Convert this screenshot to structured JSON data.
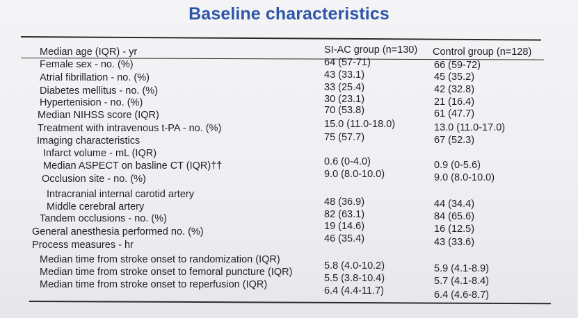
{
  "title": "Baseline characteristics",
  "columns": [
    "SI-AC group  (n=130)",
    "Control group (n=128)"
  ],
  "rows": [
    {
      "label": "Median age (IQR) - yr",
      "a": "64 (57-71)",
      "b": "66 (59-72)"
    },
    {
      "label": "Female sex - no. (%)",
      "a": "43 (33.1)",
      "b": "45 (35.2)"
    },
    {
      "label": "Atrial fibrillation - no. (%)",
      "a": "33 (25.4)",
      "b": "42 (32.8)"
    },
    {
      "label": "Diabetes mellitus - no. (%)",
      "a": "30 (23.1)",
      "b": "21 (16.4)"
    },
    {
      "label": "Hypertenision - no. (%)",
      "a": "70 (53.8)",
      "b": "61 (47.7)"
    },
    {
      "label": "Median NIHSS score (IQR)",
      "a": "15.0 (11.0-18.0)",
      "b": "13.0 (11.0-17.0)"
    },
    {
      "label": "Treatment with intravenous t-PA - no. (%)",
      "a": "75 (57.7)",
      "b": "67 (52.3)"
    },
    {
      "label": "Imaging characteristics",
      "a": "",
      "b": ""
    },
    {
      "label": "Infarct volume - mL (IQR)",
      "a": "0.6 (0-4.0)",
      "b": "0.9 (0-5.6)"
    },
    {
      "label": "Median ASPECT on basline CT (IQR)††",
      "a": "9.0 (8.0-10.0)",
      "b": "9.0 (8.0-10.0)"
    },
    {
      "label": "Occlusion site - no. (%)",
      "a": "",
      "b": ""
    },
    {
      "label": "Intracranial internal carotid artery",
      "a": "48 (36.9)",
      "b": "44 (34.4)"
    },
    {
      "label": "Middle cerebral artery",
      "a": "82 (63.1)",
      "b": "84 (65.6)"
    },
    {
      "label": "Tandem occlusions - no. (%)",
      "a": "19 (14.6)",
      "b": "16 (12.5)"
    },
    {
      "label": "General anesthesia performed no. (%)",
      "a": "46 (35.4)",
      "b": "43 (33.6)"
    },
    {
      "label": "Process measures - hr",
      "a": "",
      "b": ""
    },
    {
      "label": "Median time from stroke onset to randomization (IQR)",
      "a": "5.8 (4.0-10.2)",
      "b": "5.9 (4.1-8.9)"
    },
    {
      "label": "Median time from stroke onset to femoral puncture (IQR)",
      "a": "5.5 (3.8-10.4)",
      "b": "5.7 (4.1-8.4)"
    },
    {
      "label": "Median time from stroke onset to reperfusion (IQR)",
      "a": "6.4 (4.4-11.7)",
      "b": "6.4 (4.6-8.7)"
    }
  ]
}
